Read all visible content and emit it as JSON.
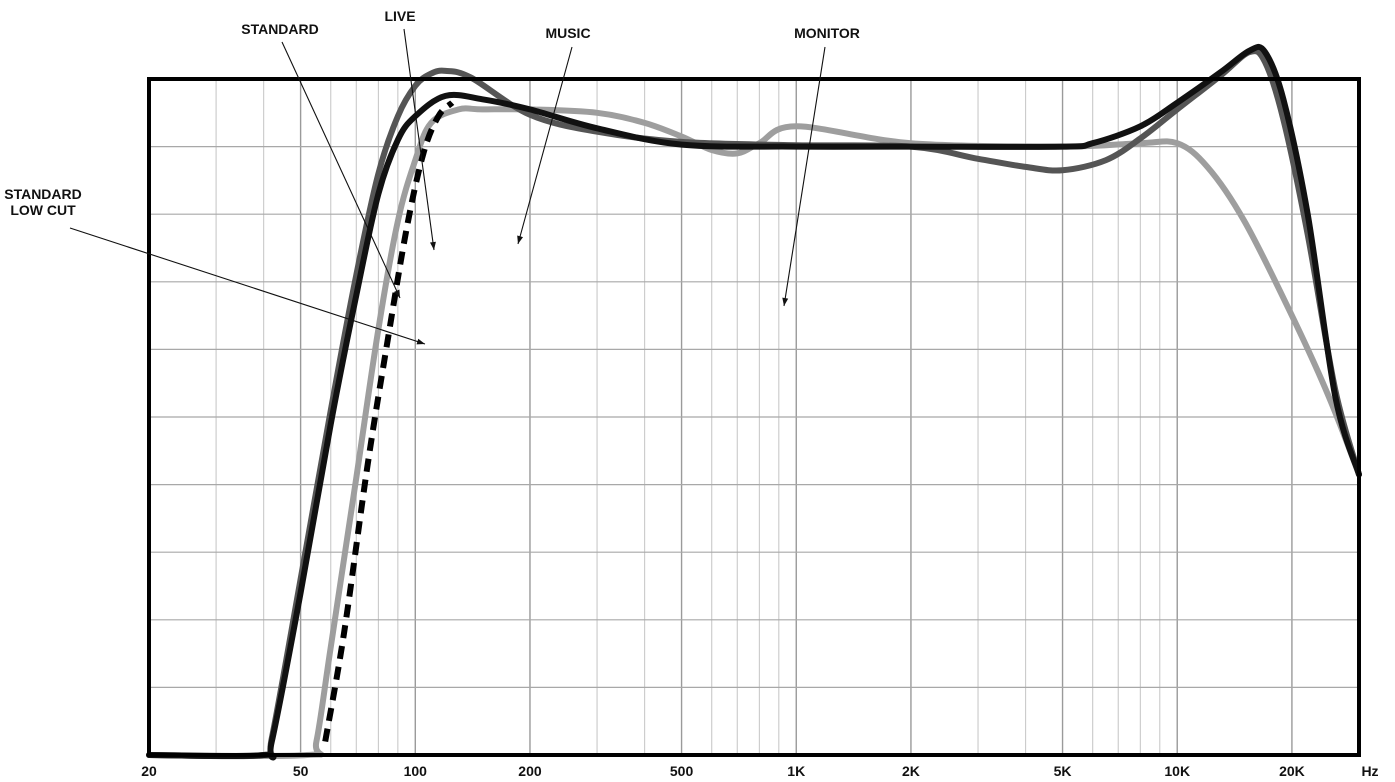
{
  "chart_data": {
    "type": "line",
    "x_scale": "log",
    "xlim": [
      20,
      30000
    ],
    "ylim": [
      0,
      10
    ],
    "grid": true,
    "x_ticks": [
      {
        "value": 20,
        "label": "20"
      },
      {
        "value": 50,
        "label": "50"
      },
      {
        "value": 100,
        "label": "100"
      },
      {
        "value": 200,
        "label": "200"
      },
      {
        "value": 500,
        "label": "500"
      },
      {
        "value": 1000,
        "label": "1K"
      },
      {
        "value": 2000,
        "label": "2K"
      },
      {
        "value": 5000,
        "label": "5K"
      },
      {
        "value": 10000,
        "label": "10K"
      },
      {
        "value": 20000,
        "label": "20K"
      }
    ],
    "x_unit_label": "Hz",
    "series": [
      {
        "name": "STANDARD",
        "color": "#111111",
        "dashed": false,
        "points": [
          [
            20,
            0
          ],
          [
            40,
            0
          ],
          [
            42,
            0.2
          ],
          [
            50,
            2.4
          ],
          [
            60,
            4.9
          ],
          [
            70,
            6.8
          ],
          [
            80,
            8.3
          ],
          [
            90,
            9.1
          ],
          [
            100,
            9.45
          ],
          [
            120,
            9.75
          ],
          [
            150,
            9.7
          ],
          [
            200,
            9.55
          ],
          [
            300,
            9.27
          ],
          [
            500,
            9.03
          ],
          [
            1000,
            9.0
          ],
          [
            2000,
            9.0
          ],
          [
            5000,
            9.0
          ],
          [
            6000,
            9.05
          ],
          [
            8000,
            9.3
          ],
          [
            10000,
            9.65
          ],
          [
            13000,
            10.1
          ],
          [
            15500,
            10.42
          ],
          [
            17000,
            10.4
          ],
          [
            19000,
            9.7
          ],
          [
            22000,
            8.0
          ],
          [
            26000,
            5.3
          ],
          [
            30000,
            4.15
          ]
        ]
      },
      {
        "name": "MUSIC",
        "color": "#555555",
        "dashed": false,
        "points": [
          [
            20,
            0
          ],
          [
            40,
            0
          ],
          [
            42,
            0.25
          ],
          [
            50,
            2.6
          ],
          [
            60,
            5.1
          ],
          [
            70,
            7.1
          ],
          [
            80,
            8.6
          ],
          [
            90,
            9.45
          ],
          [
            100,
            9.9
          ],
          [
            110,
            10.08
          ],
          [
            120,
            10.12
          ],
          [
            140,
            10.02
          ],
          [
            200,
            9.47
          ],
          [
            300,
            9.22
          ],
          [
            500,
            9.07
          ],
          [
            1000,
            9.02
          ],
          [
            2000,
            9.0
          ],
          [
            3000,
            8.82
          ],
          [
            4000,
            8.7
          ],
          [
            5000,
            8.65
          ],
          [
            6500,
            8.8
          ],
          [
            8000,
            9.12
          ],
          [
            10000,
            9.55
          ],
          [
            13000,
            10.05
          ],
          [
            15500,
            10.4
          ],
          [
            17000,
            10.25
          ],
          [
            19000,
            9.4
          ],
          [
            22000,
            7.7
          ],
          [
            26000,
            5.4
          ],
          [
            30000,
            4.15
          ]
        ]
      },
      {
        "name": "MONITOR",
        "color": "#9e9e9e",
        "dashed": false,
        "points": [
          [
            20,
            0
          ],
          [
            52,
            0
          ],
          [
            55,
            0.2
          ],
          [
            60,
            1.6
          ],
          [
            70,
            4.1
          ],
          [
            80,
            6.3
          ],
          [
            90,
            7.9
          ],
          [
            100,
            8.8
          ],
          [
            110,
            9.35
          ],
          [
            130,
            9.55
          ],
          [
            150,
            9.55
          ],
          [
            200,
            9.55
          ],
          [
            300,
            9.5
          ],
          [
            400,
            9.35
          ],
          [
            500,
            9.15
          ],
          [
            600,
            8.95
          ],
          [
            700,
            8.9
          ],
          [
            800,
            9.05
          ],
          [
            1000,
            9.3
          ],
          [
            2000,
            9.05
          ],
          [
            5000,
            9.0
          ],
          [
            8000,
            9.05
          ],
          [
            10000,
            9.05
          ],
          [
            12000,
            8.7
          ],
          [
            15000,
            7.9
          ],
          [
            20000,
            6.5
          ],
          [
            25000,
            5.3
          ],
          [
            30000,
            4.15
          ]
        ]
      },
      {
        "name": "STANDARD LOW CUT",
        "color": "#000000",
        "dashed": true,
        "points": [
          [
            58,
            0.2
          ],
          [
            65,
            1.8
          ],
          [
            75,
            4.3
          ],
          [
            85,
            6.2
          ],
          [
            95,
            7.8
          ],
          [
            105,
            8.9
          ],
          [
            115,
            9.45
          ],
          [
            125,
            9.65
          ]
        ]
      }
    ],
    "annotations": [
      {
        "text": "STANDARD"
      },
      {
        "text": "LIVE"
      },
      {
        "text": "MUSIC"
      },
      {
        "text": "MONITOR"
      },
      {
        "text": "STANDARD\nLOW CUT"
      }
    ]
  }
}
